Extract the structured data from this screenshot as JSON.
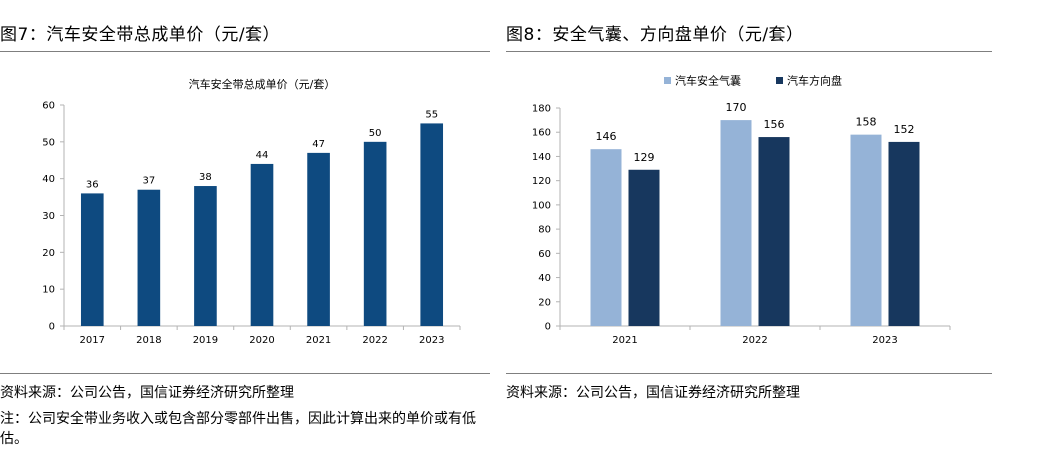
{
  "left_panel": {
    "figure_title": "图7：汽车安全带总成单价（元/套）",
    "source": "资料来源：公司公告，国信证券经济研究所整理",
    "note": "注：公司安全带业务收入或包含部分零部件出售，因此计算出来的单价或有低估。"
  },
  "right_panel": {
    "figure_title": "图8：安全气囊、方向盘单价（元/套）",
    "source": "资料来源：公司公告，国信证券经济研究所整理"
  },
  "chart_data": [
    {
      "type": "bar",
      "title": "汽车安全带总成单价（元/套）",
      "categories": [
        "2017",
        "2018",
        "2019",
        "2020",
        "2021",
        "2022",
        "2023"
      ],
      "values": [
        36,
        37,
        38,
        44,
        47,
        50,
        55
      ],
      "xlabel": "",
      "ylabel": "",
      "ylim": [
        0,
        60
      ],
      "yticks": [
        0,
        10,
        20,
        30,
        40,
        50,
        60
      ],
      "color": "#0e4a80",
      "grid": false,
      "legend": "none"
    },
    {
      "type": "bar",
      "title": "",
      "categories": [
        "2021",
        "2022",
        "2023"
      ],
      "series": [
        {
          "name": "汽车安全气囊",
          "values": [
            146,
            170,
            158
          ],
          "color": "#95b3d7"
        },
        {
          "name": "汽车方向盘",
          "values": [
            129,
            156,
            152
          ],
          "color": "#17375e"
        }
      ],
      "xlabel": "",
      "ylabel": "",
      "ylim": [
        0,
        180
      ],
      "yticks": [
        0,
        20,
        40,
        60,
        80,
        100,
        120,
        140,
        160,
        180
      ],
      "grid": false,
      "legend": "top-center"
    }
  ]
}
